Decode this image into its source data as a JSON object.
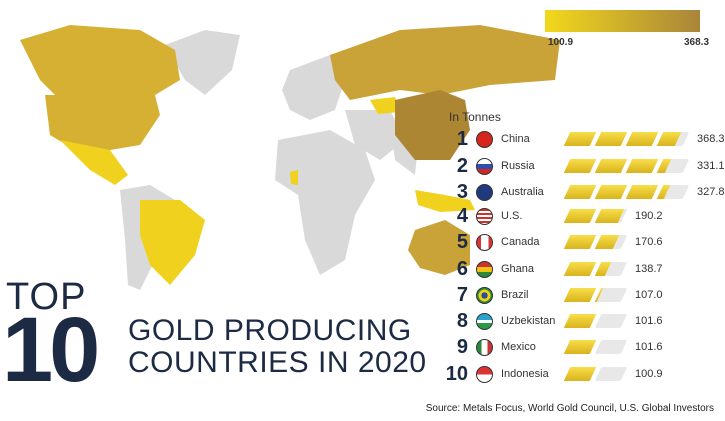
{
  "legend": {
    "min_label": "100.9",
    "max_label": "368.3",
    "min_color": "#f2d81c",
    "max_color": "#a9853a"
  },
  "title": {
    "top": "TOP",
    "number": "10",
    "line1": "GOLD PRODUCING",
    "line2": "COUNTRIES IN 2020"
  },
  "unit_label": "In Tonnes",
  "source": "Source: Metals Focus, World Gold Council, U.S. Global Investors",
  "chart_data": {
    "type": "table",
    "title": "TOP 10 GOLD PRODUCING COUNTRIES IN 2020",
    "unit": "In Tonnes",
    "rows": [
      {
        "rank": "1",
        "country": "China",
        "value": "368.3",
        "flag": "china-flag"
      },
      {
        "rank": "2",
        "country": "Russia",
        "value": "331.1",
        "flag": "russia-flag"
      },
      {
        "rank": "3",
        "country": "Australia",
        "value": "327.8",
        "flag": "australia-flag"
      },
      {
        "rank": "4",
        "country": "U.S.",
        "value": "190.2",
        "flag": "us-flag"
      },
      {
        "rank": "5",
        "country": "Canada",
        "value": "170.6",
        "flag": "canada-flag"
      },
      {
        "rank": "6",
        "country": "Ghana",
        "value": "138.7",
        "flag": "ghana-flag"
      },
      {
        "rank": "7",
        "country": "Brazil",
        "value": "107.0",
        "flag": "brazil-flag"
      },
      {
        "rank": "8",
        "country": "Uzbekistan",
        "value": "101.6",
        "flag": "uzbekistan-flag"
      },
      {
        "rank": "9",
        "country": "Mexico",
        "value": "101.6",
        "flag": "mexico-flag"
      },
      {
        "rank": "10",
        "country": "Indonesia",
        "value": "100.9",
        "flag": "indonesia-flag"
      }
    ]
  }
}
